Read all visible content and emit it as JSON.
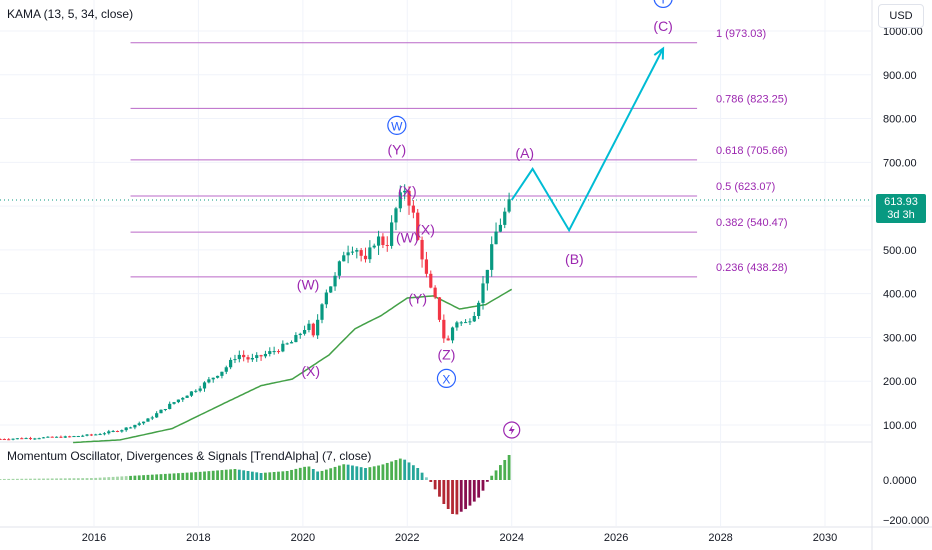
{
  "header": {
    "study_label": "KAMA (13, 5, 34, close)",
    "indicator_label": "Momentum Oscillator, Divergences & Signals [TrendAlpha] (7, close)",
    "currency_button": "USD"
  },
  "last_price": {
    "value": "613.93",
    "countdown": "3d 3h"
  },
  "colors": {
    "up": "#089981",
    "down": "#f23645",
    "kama": "#43a047",
    "fib": "#ba68c8",
    "fib_text": "#9c27b0",
    "projection": "#00bcd4",
    "wave_major": "#2962ff",
    "wave_minor": "#9c27b0"
  },
  "chart_data": [
    {
      "type": "candlestick",
      "title": "",
      "x_axis": {
        "ticks": [
          "2016",
          "2018",
          "2020",
          "2022",
          "2024",
          "2026",
          "2028",
          "2030"
        ],
        "range": [
          2014.2,
          2030.9
        ]
      },
      "y_axis": {
        "ticks": [
          "1000.00",
          "900.00",
          "800.00",
          "700.00",
          "600.00",
          "500.00",
          "400.00",
          "300.00",
          "200.00",
          "100.00"
        ],
        "range": [
          60,
          1020
        ]
      },
      "price_anchors": [
        [
          2014.2,
          68
        ],
        [
          2015.5,
          73
        ],
        [
          2016.0,
          78
        ],
        [
          2016.5,
          88
        ],
        [
          2017.0,
          110
        ],
        [
          2017.5,
          150
        ],
        [
          2018.0,
          185
        ],
        [
          2018.5,
          228
        ],
        [
          2018.75,
          262
        ],
        [
          2019.0,
          248
        ],
        [
          2019.5,
          272
        ],
        [
          2019.8,
          290
        ],
        [
          2020.1,
          330
        ],
        [
          2020.2,
          300
        ],
        [
          2020.4,
          400
        ],
        [
          2020.6,
          430
        ],
        [
          2020.8,
          500
        ],
        [
          2021.0,
          510
        ],
        [
          2021.2,
          470
        ],
        [
          2021.4,
          530
        ],
        [
          2021.6,
          510
        ],
        [
          2021.8,
          600
        ],
        [
          2021.95,
          640
        ],
        [
          2022.1,
          590
        ],
        [
          2022.2,
          520
        ],
        [
          2022.3,
          480
        ],
        [
          2022.4,
          420
        ],
        [
          2022.55,
          380
        ],
        [
          2022.7,
          300
        ],
        [
          2022.8,
          290
        ],
        [
          2022.9,
          340
        ],
        [
          2023.1,
          330
        ],
        [
          2023.3,
          360
        ],
        [
          2023.45,
          420
        ],
        [
          2023.55,
          470
        ],
        [
          2023.7,
          540
        ],
        [
          2023.85,
          580
        ],
        [
          2024.0,
          613.93
        ]
      ],
      "kama_anchors": [
        [
          2015.6,
          60
        ],
        [
          2016.5,
          66
        ],
        [
          2017.5,
          92
        ],
        [
          2018.5,
          150
        ],
        [
          2019.2,
          190
        ],
        [
          2019.8,
          205
        ],
        [
          2020.5,
          260
        ],
        [
          2021.0,
          320
        ],
        [
          2021.5,
          350
        ],
        [
          2022.0,
          390
        ],
        [
          2022.5,
          395
        ],
        [
          2023.0,
          365
        ],
        [
          2023.5,
          375
        ],
        [
          2024.0,
          410
        ]
      ],
      "fib_levels": [
        {
          "label": "0.236 (438.28)",
          "value": 438.28
        },
        {
          "label": "0.382 (540.47)",
          "value": 540.47
        },
        {
          "label": "0.5 (623.07)",
          "value": 623.07
        },
        {
          "label": "0.618 (705.66)",
          "value": 705.66
        },
        {
          "label": "0.786 (823.25)",
          "value": 823.25
        },
        {
          "label": "1 (973.03)",
          "value": 973.03
        }
      ],
      "projection_path": [
        [
          2024.0,
          613.93
        ],
        [
          2024.4,
          685
        ],
        [
          2025.1,
          545
        ],
        [
          2026.9,
          960
        ]
      ],
      "wave_labels": [
        {
          "text": "W",
          "circled": true,
          "major": true,
          "x": 2021.8,
          "y": 773
        },
        {
          "text": "(Y)",
          "x": 2021.8,
          "y": 718
        },
        {
          "text": "(X)",
          "x": 2022.0,
          "y": 623
        },
        {
          "text": "(X)",
          "x": 2022.35,
          "y": 535
        },
        {
          "text": "(W)",
          "x": 2022.0,
          "y": 517
        },
        {
          "text": "(W)",
          "x": 2020.1,
          "y": 410
        },
        {
          "text": "(Y)",
          "x": 2022.2,
          "y": 377
        },
        {
          "text": "(X)",
          "x": 2020.15,
          "y": 212
        },
        {
          "text": "(Z)",
          "x": 2022.75,
          "y": 250
        },
        {
          "text": "X",
          "circled": true,
          "major": true,
          "x": 2022.75,
          "y": 195
        },
        {
          "text": "(A)",
          "x": 2024.25,
          "y": 710
        },
        {
          "text": "(B)",
          "x": 2025.2,
          "y": 468
        },
        {
          "text": "(C)",
          "x": 2026.9,
          "y": 1000
        },
        {
          "text": "Y",
          "circled": true,
          "major": true,
          "x": 2026.9,
          "y": 1063
        }
      ]
    },
    {
      "type": "bar",
      "title": "",
      "y_axis": {
        "ticks": [
          "0.0000",
          "−200.000"
        ],
        "range": [
          -230,
          180
        ]
      },
      "x_range": [
        2014.2,
        2024.0
      ],
      "momentum_anchors": [
        [
          2014.2,
          5
        ],
        [
          2016.0,
          10
        ],
        [
          2017.0,
          25
        ],
        [
          2018.0,
          40
        ],
        [
          2018.7,
          55
        ],
        [
          2019.2,
          35
        ],
        [
          2019.7,
          45
        ],
        [
          2020.1,
          70
        ],
        [
          2020.3,
          40
        ],
        [
          2020.8,
          80
        ],
        [
          2021.2,
          60
        ],
        [
          2021.5,
          75
        ],
        [
          2021.9,
          110
        ],
        [
          2022.2,
          60
        ],
        [
          2022.45,
          -10
        ],
        [
          2022.7,
          -120
        ],
        [
          2022.9,
          -180
        ],
        [
          2023.15,
          -140
        ],
        [
          2023.4,
          -80
        ],
        [
          2023.55,
          0
        ],
        [
          2023.8,
          80
        ],
        [
          2024.0,
          140
        ]
      ],
      "signal_icon": "lightning-icon"
    }
  ]
}
